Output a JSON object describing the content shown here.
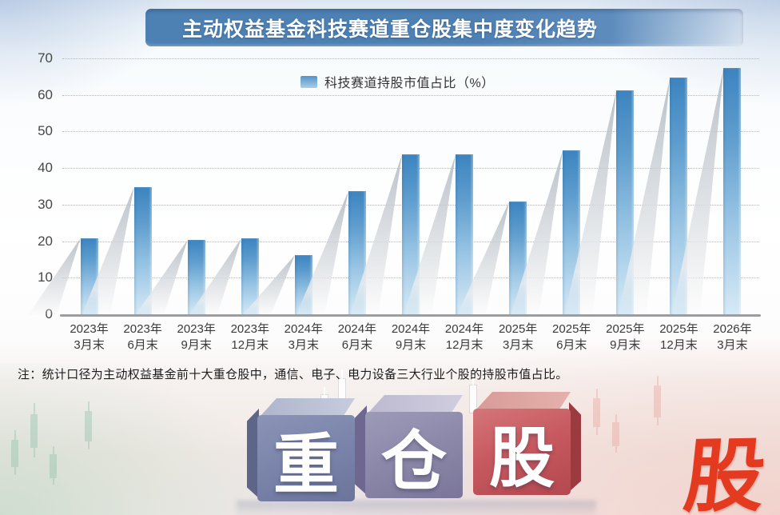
{
  "title": "主动权益基金科技赛道重仓股集中度变化趋势",
  "note": "注：统计口径为主动权益基金前十大重仓股中，通信、电子、电力设备三大行业个股的持股市值占比。",
  "chart_data": {
    "type": "bar",
    "title": "主动权益基金科技赛道重仓股集中度变化趋势",
    "legend": "科技赛道持股市值占比（%）",
    "categories": [
      "2023年3月末",
      "2023年6月末",
      "2023年9月末",
      "2023年12月末",
      "2024年3月末",
      "2024年6月末",
      "2024年9月末",
      "2024年12月末",
      "2025年3月末",
      "2025年6月末",
      "2025年9月末",
      "2025年12月末",
      "2026年3月末"
    ],
    "values": [
      21,
      35,
      20.5,
      21,
      16.5,
      34,
      44,
      44,
      31,
      45,
      61.5,
      65,
      67.5
    ],
    "xlabel": "",
    "ylabel": "",
    "ylim": [
      0,
      70
    ],
    "yticks": [
      0,
      10,
      20,
      30,
      40,
      50,
      60,
      70
    ],
    "grid": "dotted-horizontal",
    "legend_position": "top-center",
    "bar_color_top": "#3c84bf",
    "bar_color_bottom": "#d7eaf6"
  },
  "colors": {
    "banner_blue": "#4d80b3",
    "bar_blue": "#4a8fc6",
    "logo_red": "#e33a20"
  },
  "decor": {
    "blocks": [
      "重",
      "仓",
      "股"
    ],
    "corner_logo": "股"
  }
}
